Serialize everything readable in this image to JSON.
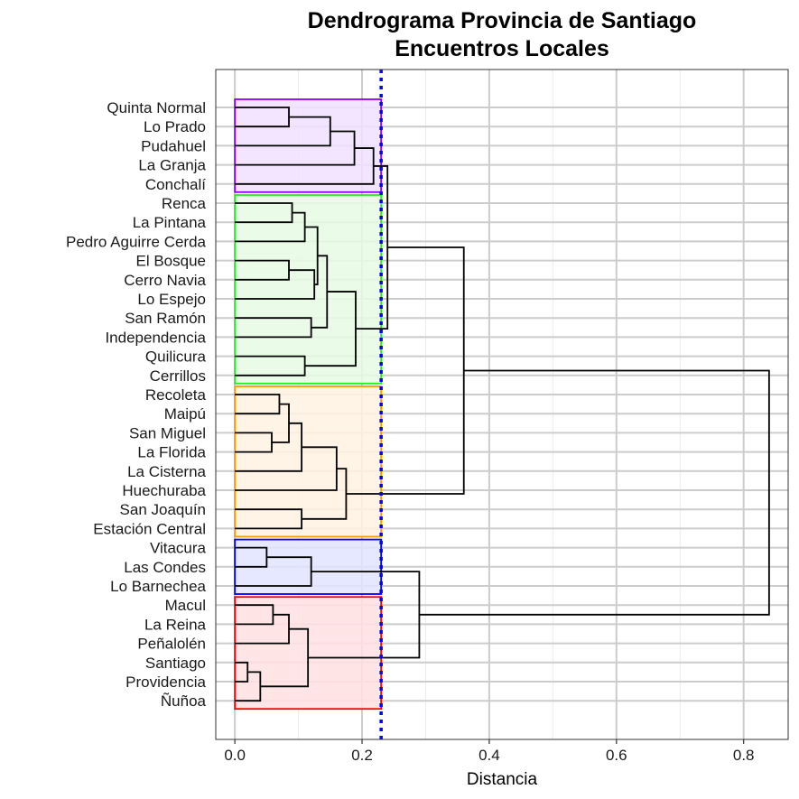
{
  "chart_data": {
    "type": "dendrogram",
    "orientation": "horizontal",
    "title": [
      "Dendrograma Provincia de Santiago",
      "Encuentros Locales"
    ],
    "xlabel": "Distancia",
    "ylabel": "",
    "xlim": [
      -0.03,
      0.87
    ],
    "xticks": [
      0.0,
      0.2,
      0.4,
      0.6,
      0.8
    ],
    "xtick_labels": [
      "0.0",
      "0.2",
      "0.4",
      "0.6",
      "0.8"
    ],
    "grid": true,
    "cut_height": 0.23,
    "cut_line_color": "#0000ff",
    "leaves": [
      "Quinta Normal",
      "Lo Prado",
      "Pudahuel",
      "La Granja",
      "Conchalí",
      "Renca",
      "La Pintana",
      "Pedro Aguirre Cerda",
      "El Bosque",
      "Cerro Navia",
      "Lo Espejo",
      "San Ramón",
      "Independencia",
      "Quilicura",
      "Cerrillos",
      "Recoleta",
      "Maipú",
      "San Miguel",
      "La Florida",
      "La Cisterna",
      "Huechuraba",
      "San Joaquín",
      "Estación Central",
      "Vitacura",
      "Las Condes",
      "Lo Barnechea",
      "Macul",
      "La Reina",
      "Peñalolén",
      "Santiago",
      "Providencia",
      "Ñuñoa"
    ],
    "merges": [
      {
        "a": 0,
        "b": 1,
        "height": 0.085
      },
      {
        "a": "m0",
        "b": 2,
        "height": 0.15
      },
      {
        "a": "m1",
        "b": 3,
        "height": 0.188
      },
      {
        "a": "m2",
        "b": 4,
        "height": 0.218
      },
      {
        "a": 5,
        "b": 6,
        "height": 0.09
      },
      {
        "a": "m4",
        "b": 7,
        "height": 0.11
      },
      {
        "a": 8,
        "b": 9,
        "height": 0.085
      },
      {
        "a": "m6",
        "b": 10,
        "height": 0.125
      },
      {
        "a": "m5",
        "b": "m7",
        "height": 0.13
      },
      {
        "a": 11,
        "b": 12,
        "height": 0.12
      },
      {
        "a": "m8",
        "b": "m9",
        "height": 0.145
      },
      {
        "a": 13,
        "b": 14,
        "height": 0.11
      },
      {
        "a": "m10",
        "b": "m11",
        "height": 0.19
      },
      {
        "a": "m3",
        "b": "m12",
        "height": 0.24
      },
      {
        "a": 15,
        "b": 16,
        "height": 0.07
      },
      {
        "a": 17,
        "b": 18,
        "height": 0.058
      },
      {
        "a": "m14",
        "b": "m15",
        "height": 0.085
      },
      {
        "a": "m16",
        "b": 19,
        "height": 0.105
      },
      {
        "a": "m17",
        "b": 20,
        "height": 0.16
      },
      {
        "a": 21,
        "b": 22,
        "height": 0.105
      },
      {
        "a": "m18",
        "b": "m19",
        "height": 0.175
      },
      {
        "a": "m13",
        "b": "m20",
        "height": 0.36
      },
      {
        "a": 23,
        "b": 24,
        "height": 0.05
      },
      {
        "a": "m22",
        "b": 25,
        "height": 0.12
      },
      {
        "a": 26,
        "b": 27,
        "height": 0.06
      },
      {
        "a": "m24",
        "b": 28,
        "height": 0.085
      },
      {
        "a": 29,
        "b": 30,
        "height": 0.02
      },
      {
        "a": "m26",
        "b": 31,
        "height": 0.04
      },
      {
        "a": "m25",
        "b": "m27",
        "height": 0.115
      },
      {
        "a": "m23",
        "b": "m28",
        "height": 0.29
      },
      {
        "a": "m21",
        "b": "m29",
        "height": 0.84
      }
    ],
    "clusters": [
      {
        "start": 0,
        "end": 4,
        "border": "#8b00ff",
        "fill": "#f1e0ff"
      },
      {
        "start": 5,
        "end": 14,
        "border": "#22ee22",
        "fill": "#e6fce4"
      },
      {
        "start": 15,
        "end": 22,
        "border": "#ff9900",
        "fill": "#fff2e2"
      },
      {
        "start": 23,
        "end": 25,
        "border": "#0000ff",
        "fill": "#e2e4ff"
      },
      {
        "start": 26,
        "end": 31,
        "border": "#ff0000",
        "fill": "#ffe0e2"
      }
    ]
  }
}
